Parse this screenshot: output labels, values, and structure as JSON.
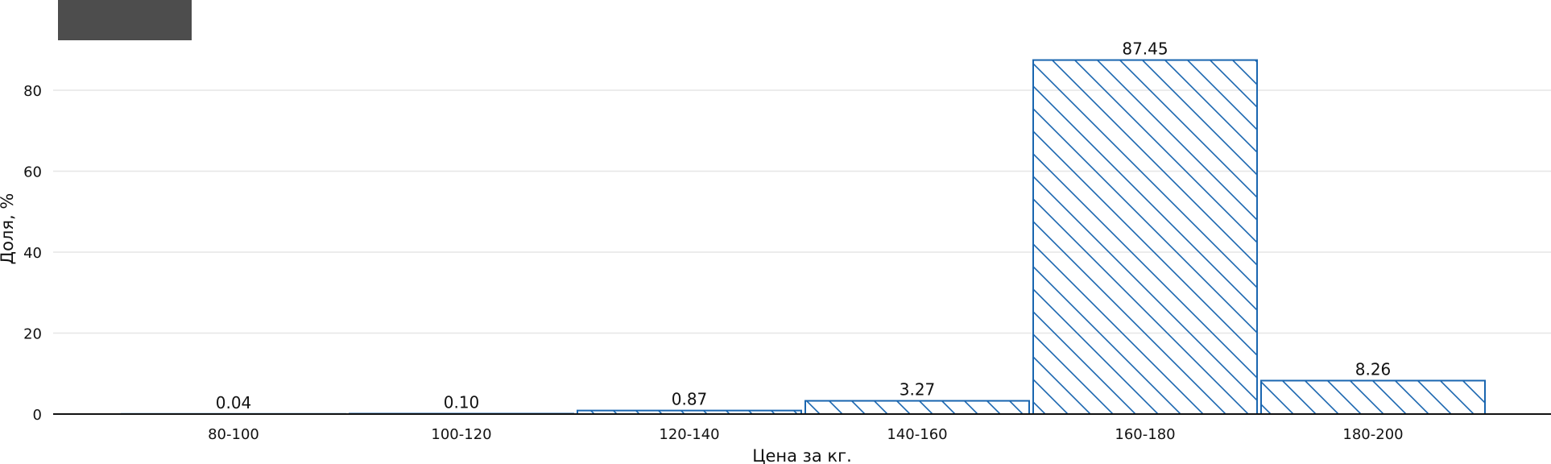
{
  "chart_data": {
    "type": "bar",
    "categories": [
      "80-100",
      "100-120",
      "120-140",
      "140-160",
      "160-180",
      "180-200"
    ],
    "values": [
      0.04,
      0.1,
      0.87,
      3.27,
      87.45,
      8.26
    ],
    "data_labels": [
      "0.04",
      "0.10",
      "0.87",
      "3.27",
      "87.45",
      "8.26"
    ],
    "xlabel": "Цена за кг.",
    "ylabel": "Доля, %",
    "ylim": [
      0,
      90
    ],
    "yticks": [
      0,
      20,
      40,
      60,
      80
    ],
    "ytick_labels": [
      "0",
      "20",
      "40",
      "60",
      "80"
    ],
    "grid": "horizontal",
    "bar_fill": "hatched",
    "colors": {
      "bar": "#1a66b0",
      "grid": "#e6e6e6",
      "axis": "#111111",
      "legend_box": "#4d4d4d"
    }
  }
}
